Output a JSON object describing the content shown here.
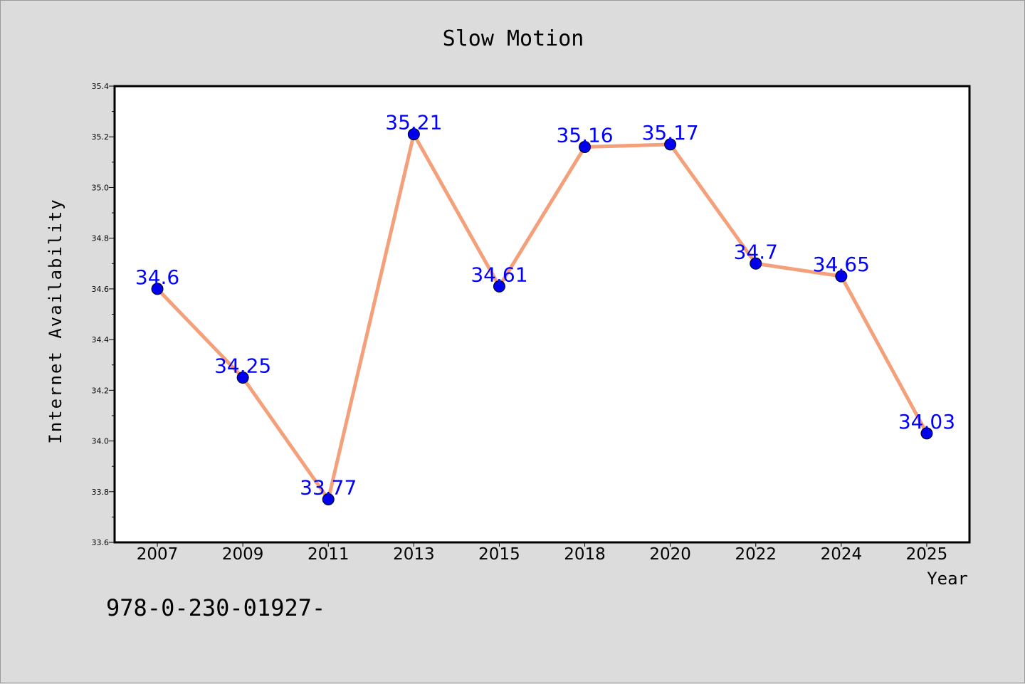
{
  "chart_data": {
    "type": "line",
    "title": "Slow Motion",
    "xlabel": "Year",
    "ylabel": "Internet Availability",
    "categories": [
      "2007",
      "2009",
      "2011",
      "2013",
      "2015",
      "2018",
      "2020",
      "2022",
      "2024",
      "2025"
    ],
    "values": [
      34.6,
      34.25,
      33.77,
      35.21,
      34.61,
      35.16,
      35.17,
      34.7,
      34.65,
      34.03
    ],
    "data_labels": [
      "34.6",
      "34.25",
      "33.77",
      "35.21",
      "34.61",
      "35.16",
      "35.17",
      "34.7",
      "34.65",
      "34.03"
    ],
    "ylim": [
      33.6,
      35.4
    ],
    "yticks": [
      "33.6",
      "33.8",
      "34.0",
      "34.2",
      "34.4",
      "34.6",
      "34.8",
      "35.0",
      "35.2",
      "35.4"
    ],
    "grid": false,
    "line_color": "#f4a07a",
    "marker_color": "#0000ee",
    "label_color": "#0000ff",
    "background": "#dcdcdc",
    "plot_background": "#ffffff"
  },
  "footer": {
    "code": "978-0-230-01927-"
  }
}
